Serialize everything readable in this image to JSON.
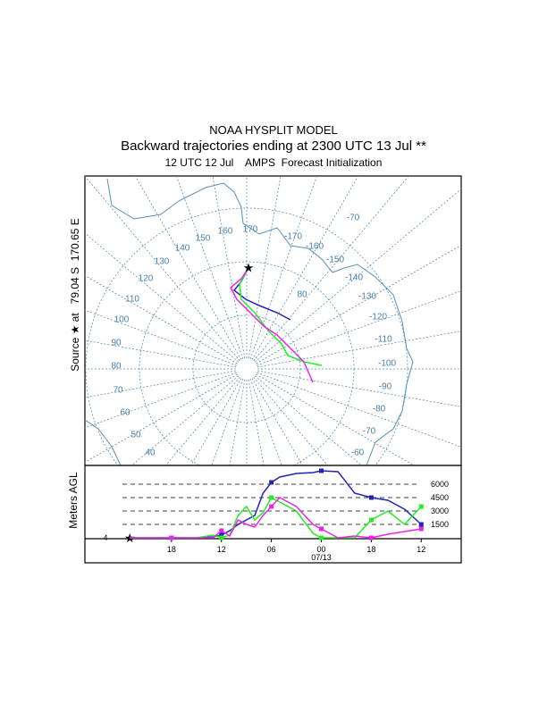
{
  "header": {
    "title": "NOAA HYSPLIT MODEL",
    "subtitle": "Backward trajectories ending at 2300 UTC 13 Jul **",
    "init": "12 UTC 12 Jul    AMPS  Forecast Initialization"
  },
  "map": {
    "source_label": "Source ★ at   79.04 S  170.65 E",
    "labels": [
      "170",
      "160",
      "150",
      "140",
      "130",
      "120",
      "110",
      "100",
      "90",
      "80",
      "70",
      "60",
      "50",
      "40",
      "-170",
      "-160",
      "-150",
      "-140",
      "-130",
      "-120",
      "-110",
      "-100",
      "-90",
      "-80",
      "-70",
      "-60",
      "80",
      "-70"
    ]
  },
  "profile": {
    "axis_label": "Meters AGL",
    "level_label": "4",
    "date_label": "07/13",
    "xlim": [
      -5.4,
      39.8
    ],
    "ylim": [
      0,
      8000
    ],
    "xticks": [
      {
        "value": 5,
        "label": "18"
      },
      {
        "value": 11,
        "label": "12"
      },
      {
        "value": 17,
        "label": "06"
      },
      {
        "value": 23,
        "label": "00"
      },
      {
        "value": 29,
        "label": "18"
      },
      {
        "value": 35,
        "label": "12"
      }
    ],
    "yticks": [
      1500,
      3000,
      4500,
      6000
    ],
    "x": [
      0,
      5,
      8,
      10,
      11,
      12,
      13,
      14,
      15,
      16,
      17,
      18,
      20,
      22,
      23,
      25,
      27,
      29,
      31,
      33,
      35
    ],
    "series": [
      {
        "color": "#2222bb",
        "values": [
          0,
          0,
          0,
          100,
          300,
          800,
          1500,
          2000,
          2500,
          5000,
          6200,
          6800,
          7200,
          7300,
          7500,
          7400,
          5000,
          4500,
          4200,
          3200,
          1500
        ]
      },
      {
        "color": "#22ee22",
        "values": [
          0,
          0,
          0,
          300,
          0,
          300,
          2500,
          3500,
          2000,
          2800,
          4500,
          4000,
          3000,
          500,
          0,
          0,
          0,
          2000,
          3000,
          1500,
          3500
        ]
      },
      {
        "color": "#ee22ee",
        "values": [
          0,
          0,
          0,
          0,
          800,
          200,
          2000,
          1500,
          1200,
          2500,
          3500,
          4500,
          3500,
          1500,
          1000,
          0,
          200,
          0,
          400,
          700,
          1000
        ]
      }
    ]
  }
}
